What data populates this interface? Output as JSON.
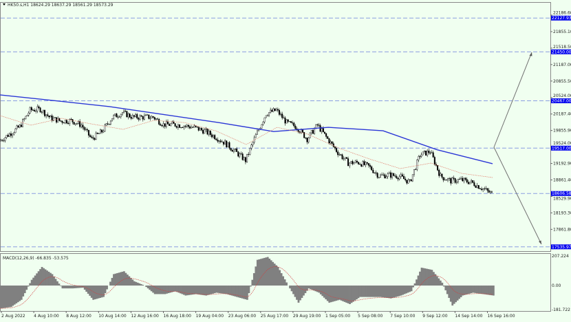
{
  "header": {
    "symbol_info": "HK50.s,H1  18624.29 18637.29 18561.29 18573.29"
  },
  "colors": {
    "background": "#f0fff0",
    "candle": "#000000",
    "ma_slow": "#2b36d6",
    "ma_fast": "#e07a6a",
    "level_line": "#8a9de0",
    "level_label_bg": "#0000ee",
    "histogram": "#808080",
    "signal": "#d04040",
    "projection_arrow": "#707070"
  },
  "chart_data": [
    {
      "type": "candlestick",
      "title": "HK50.s,H1",
      "price_axis_ticks": [
        "22186.60",
        "21855.10",
        "21518.50",
        "21187.00",
        "20855.50",
        "20524.00",
        "20187.40",
        "19855.90",
        "19524.00",
        "19192.90",
        "18861.40",
        "18529.90",
        "18193.30",
        "17861.80"
      ],
      "ylim": [
        17480,
        22470
      ],
      "time_axis_ticks": [
        "2 Aug 2022",
        "4 Aug 10:00",
        "8 Aug 12:00",
        "10 Aug 14:00",
        "12 Aug 16:00",
        "16 Aug 18:00",
        "19 Aug 04:00",
        "23 Aug 06:00",
        "25 Aug 17:00",
        "29 Aug 19:00",
        "1 Sep 05:00",
        "5 Sep 08:00",
        "7 Sep 10:00",
        "9 Sep 12:00",
        "14 Sep 14:00",
        "16 Sep 16:00"
      ],
      "close_samples": [
        19659,
        19800,
        19950,
        20280,
        20300,
        20120,
        20060,
        20070,
        19980,
        19700,
        19850,
        20130,
        20230,
        20140,
        20140,
        20140,
        19990,
        19990,
        19970,
        19930,
        19860,
        19750,
        19620,
        19450,
        19270,
        19770,
        20210,
        20280,
        20030,
        19940,
        19700,
        19980,
        19700,
        19430,
        19220,
        19230,
        19150,
        18960,
        18980,
        18950,
        18830,
        19380,
        19450,
        18950,
        18860,
        18880,
        18830,
        18720,
        18600
      ],
      "ma_slow_samples": [
        20585,
        20470,
        20350,
        20190,
        20030,
        19850,
        19935,
        19866,
        19480,
        19204
      ],
      "ma_fast_samples": [
        20170,
        19977,
        20115,
        20000,
        19894,
        20074,
        20030,
        19866,
        19590,
        19935,
        19797,
        19520,
        19300,
        19107,
        19217,
        19010,
        18927
      ],
      "levels": [
        {
          "price": "22127.93"
        },
        {
          "price": "21450.00"
        },
        {
          "price": "20467.00"
        },
        {
          "price": "19517.00"
        },
        {
          "price": "18606.58"
        },
        {
          "price": "17535.97"
        }
      ]
    },
    {
      "type": "histogram",
      "title": "MACD(12,26,9) -66.835 -53.575",
      "axis_ticks": [
        "207.224",
        "0.00",
        "-181.722"
      ],
      "ylim": [
        -181.722,
        207.224
      ],
      "histogram_samples": [
        -160,
        -150,
        -100,
        40,
        130,
        80,
        -20,
        -20,
        -15,
        -100,
        -80,
        80,
        100,
        30,
        0,
        -60,
        -60,
        -40,
        -70,
        -60,
        -70,
        -50,
        -60,
        -80,
        -100,
        180,
        200,
        130,
        0,
        -120,
        -20,
        -50,
        -120,
        -100,
        -130,
        -80,
        -80,
        -80,
        -90,
        -70,
        -40,
        125,
        110,
        20,
        -140,
        -70,
        -50,
        -60,
        -70
      ]
    }
  ]
}
